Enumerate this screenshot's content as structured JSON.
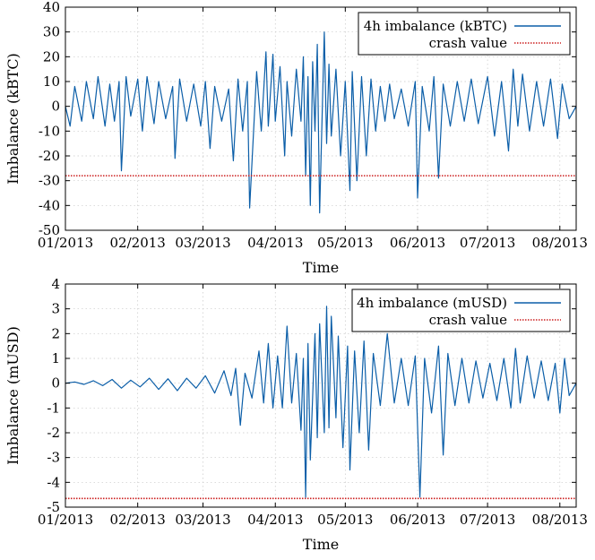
{
  "chart_data": [
    {
      "type": "line",
      "title": "",
      "xlabel": "Time",
      "ylabel": "Imbalance (kBTC)",
      "xlim": [
        "2013-01-01",
        "2013-08-08"
      ],
      "ylim": [
        -50,
        40
      ],
      "yticks": [
        -50,
        -40,
        -30,
        -20,
        -10,
        0,
        10,
        20,
        30,
        40
      ],
      "xticks": [
        {
          "date": "2013-01-01",
          "label": "01/2013"
        },
        {
          "date": "2013-02-01",
          "label": "02/2013"
        },
        {
          "date": "2013-03-01",
          "label": "03/2013"
        },
        {
          "date": "2013-04-01",
          "label": "04/2013"
        },
        {
          "date": "2013-05-01",
          "label": "05/2013"
        },
        {
          "date": "2013-06-01",
          "label": "06/2013"
        },
        {
          "date": "2013-07-01",
          "label": "07/2013"
        },
        {
          "date": "2013-08-01",
          "label": "08/2013"
        }
      ],
      "grid": true,
      "legend_position": "top-right",
      "series": [
        {
          "name": "4h imbalance (kBTC)",
          "color": "#0b5ea8",
          "style": "solid",
          "points": [
            [
              "2013-01-01",
              0
            ],
            [
              "2013-01-03",
              -8
            ],
            [
              "2013-01-05",
              8
            ],
            [
              "2013-01-08",
              -6
            ],
            [
              "2013-01-10",
              10
            ],
            [
              "2013-01-13",
              -5
            ],
            [
              "2013-01-15",
              12
            ],
            [
              "2013-01-18",
              -8
            ],
            [
              "2013-01-20",
              9
            ],
            [
              "2013-01-22",
              -6
            ],
            [
              "2013-01-24",
              10
            ],
            [
              "2013-01-25",
              -26
            ],
            [
              "2013-01-27",
              12
            ],
            [
              "2013-01-29",
              -4
            ],
            [
              "2013-02-01",
              11
            ],
            [
              "2013-02-03",
              -10
            ],
            [
              "2013-02-05",
              12
            ],
            [
              "2013-02-08",
              -7
            ],
            [
              "2013-02-10",
              10
            ],
            [
              "2013-02-13",
              -5
            ],
            [
              "2013-02-16",
              8
            ],
            [
              "2013-02-17",
              -21
            ],
            [
              "2013-02-19",
              11
            ],
            [
              "2013-02-22",
              -6
            ],
            [
              "2013-02-25",
              9
            ],
            [
              "2013-02-28",
              -8
            ],
            [
              "2013-03-02",
              10
            ],
            [
              "2013-03-04",
              -17
            ],
            [
              "2013-03-06",
              8
            ],
            [
              "2013-03-09",
              -6
            ],
            [
              "2013-03-12",
              7
            ],
            [
              "2013-03-14",
              -22
            ],
            [
              "2013-03-16",
              11
            ],
            [
              "2013-03-18",
              -10
            ],
            [
              "2013-03-20",
              10
            ],
            [
              "2013-03-21",
              -41
            ],
            [
              "2013-03-24",
              14
            ],
            [
              "2013-03-26",
              -10
            ],
            [
              "2013-03-28",
              22
            ],
            [
              "2013-03-29",
              -8
            ],
            [
              "2013-03-31",
              21
            ],
            [
              "2013-04-01",
              -6
            ],
            [
              "2013-04-03",
              16
            ],
            [
              "2013-04-05",
              -20
            ],
            [
              "2013-04-06",
              10
            ],
            [
              "2013-04-08",
              -12
            ],
            [
              "2013-04-10",
              15
            ],
            [
              "2013-04-12",
              -6
            ],
            [
              "2013-04-13",
              20
            ],
            [
              "2013-04-14",
              -28
            ],
            [
              "2013-04-15",
              12
            ],
            [
              "2013-04-16",
              -40
            ],
            [
              "2013-04-17",
              18
            ],
            [
              "2013-04-18",
              -10
            ],
            [
              "2013-04-19",
              25
            ],
            [
              "2013-04-20",
              -43
            ],
            [
              "2013-04-22",
              30
            ],
            [
              "2013-04-23",
              -15
            ],
            [
              "2013-04-24",
              17
            ],
            [
              "2013-04-25",
              -12
            ],
            [
              "2013-04-27",
              15
            ],
            [
              "2013-04-29",
              -20
            ],
            [
              "2013-05-01",
              10
            ],
            [
              "2013-05-03",
              -34
            ],
            [
              "2013-05-04",
              14
            ],
            [
              "2013-05-06",
              -30
            ],
            [
              "2013-05-08",
              12
            ],
            [
              "2013-05-10",
              -20
            ],
            [
              "2013-05-12",
              11
            ],
            [
              "2013-05-14",
              -10
            ],
            [
              "2013-05-16",
              8
            ],
            [
              "2013-05-18",
              -6
            ],
            [
              "2013-05-20",
              9
            ],
            [
              "2013-05-22",
              -5
            ],
            [
              "2013-05-25",
              7
            ],
            [
              "2013-05-28",
              -8
            ],
            [
              "2013-05-31",
              10
            ],
            [
              "2013-06-01",
              -37
            ],
            [
              "2013-06-03",
              8
            ],
            [
              "2013-06-06",
              -10
            ],
            [
              "2013-06-08",
              12
            ],
            [
              "2013-06-10",
              -29
            ],
            [
              "2013-06-12",
              9
            ],
            [
              "2013-06-15",
              -8
            ],
            [
              "2013-06-18",
              10
            ],
            [
              "2013-06-21",
              -6
            ],
            [
              "2013-06-24",
              11
            ],
            [
              "2013-06-27",
              -7
            ],
            [
              "2013-07-01",
              12
            ],
            [
              "2013-07-04",
              -12
            ],
            [
              "2013-07-07",
              10
            ],
            [
              "2013-07-10",
              -18
            ],
            [
              "2013-07-12",
              15
            ],
            [
              "2013-07-14",
              -8
            ],
            [
              "2013-07-16",
              13
            ],
            [
              "2013-07-19",
              -10
            ],
            [
              "2013-07-22",
              10
            ],
            [
              "2013-07-25",
              -8
            ],
            [
              "2013-07-28",
              11
            ],
            [
              "2013-07-31",
              -13
            ],
            [
              "2013-08-02",
              9
            ],
            [
              "2013-08-05",
              -5
            ],
            [
              "2013-08-08",
              0
            ]
          ]
        },
        {
          "name": "crash value",
          "color": "#cc1f1f",
          "style": "dotted",
          "y": -28
        }
      ]
    },
    {
      "type": "line",
      "title": "",
      "xlabel": "Time",
      "ylabel": "Imbalance (mUSD)",
      "xlim": [
        "2013-01-01",
        "2013-08-08"
      ],
      "ylim": [
        -5,
        4
      ],
      "yticks": [
        -5,
        -4,
        -3,
        -2,
        -1,
        0,
        1,
        2,
        3,
        4
      ],
      "xticks": [
        {
          "date": "2013-01-01",
          "label": "01/2013"
        },
        {
          "date": "2013-02-01",
          "label": "02/2013"
        },
        {
          "date": "2013-03-01",
          "label": "03/2013"
        },
        {
          "date": "2013-04-01",
          "label": "04/2013"
        },
        {
          "date": "2013-05-01",
          "label": "05/2013"
        },
        {
          "date": "2013-06-01",
          "label": "06/2013"
        },
        {
          "date": "2013-07-01",
          "label": "07/2013"
        },
        {
          "date": "2013-08-01",
          "label": "08/2013"
        }
      ],
      "grid": true,
      "legend_position": "top-right",
      "series": [
        {
          "name": "4h imbalance (mUSD)",
          "color": "#0b5ea8",
          "style": "solid",
          "points": [
            [
              "2013-01-01",
              0
            ],
            [
              "2013-01-05",
              0.05
            ],
            [
              "2013-01-09",
              -0.05
            ],
            [
              "2013-01-13",
              0.1
            ],
            [
              "2013-01-17",
              -0.1
            ],
            [
              "2013-01-21",
              0.15
            ],
            [
              "2013-01-25",
              -0.2
            ],
            [
              "2013-01-29",
              0.12
            ],
            [
              "2013-02-02",
              -0.15
            ],
            [
              "2013-02-06",
              0.2
            ],
            [
              "2013-02-10",
              -0.25
            ],
            [
              "2013-02-14",
              0.18
            ],
            [
              "2013-02-18",
              -0.3
            ],
            [
              "2013-02-22",
              0.2
            ],
            [
              "2013-02-26",
              -0.2
            ],
            [
              "2013-03-02",
              0.3
            ],
            [
              "2013-03-06",
              -0.4
            ],
            [
              "2013-03-10",
              0.5
            ],
            [
              "2013-03-13",
              -0.5
            ],
            [
              "2013-03-15",
              0.6
            ],
            [
              "2013-03-17",
              -1.7
            ],
            [
              "2013-03-19",
              0.4
            ],
            [
              "2013-03-22",
              -0.6
            ],
            [
              "2013-03-25",
              1.3
            ],
            [
              "2013-03-27",
              -0.8
            ],
            [
              "2013-03-29",
              1.6
            ],
            [
              "2013-03-31",
              -1.0
            ],
            [
              "2013-04-02",
              1.1
            ],
            [
              "2013-04-04",
              -1.0
            ],
            [
              "2013-04-06",
              2.3
            ],
            [
              "2013-04-08",
              -0.8
            ],
            [
              "2013-04-10",
              1.2
            ],
            [
              "2013-04-12",
              -1.9
            ],
            [
              "2013-04-13",
              1.0
            ],
            [
              "2013-04-14",
              -4.6
            ],
            [
              "2013-04-15",
              1.6
            ],
            [
              "2013-04-16",
              -3.1
            ],
            [
              "2013-04-18",
              2.0
            ],
            [
              "2013-04-19",
              -2.2
            ],
            [
              "2013-04-20",
              2.4
            ],
            [
              "2013-04-22",
              -2.0
            ],
            [
              "2013-04-23",
              3.1
            ],
            [
              "2013-04-24",
              -1.8
            ],
            [
              "2013-04-25",
              2.7
            ],
            [
              "2013-04-27",
              -1.4
            ],
            [
              "2013-04-28",
              1.9
            ],
            [
              "2013-04-30",
              -2.6
            ],
            [
              "2013-05-02",
              1.5
            ],
            [
              "2013-05-03",
              -3.5
            ],
            [
              "2013-05-05",
              1.3
            ],
            [
              "2013-05-07",
              -2.0
            ],
            [
              "2013-05-09",
              1.7
            ],
            [
              "2013-05-11",
              -2.7
            ],
            [
              "2013-05-13",
              1.2
            ],
            [
              "2013-05-16",
              -0.9
            ],
            [
              "2013-05-19",
              2.0
            ],
            [
              "2013-05-22",
              -0.8
            ],
            [
              "2013-05-25",
              1.0
            ],
            [
              "2013-05-28",
              -0.9
            ],
            [
              "2013-05-31",
              1.1
            ],
            [
              "2013-06-02",
              -4.6
            ],
            [
              "2013-06-04",
              1.0
            ],
            [
              "2013-06-07",
              -1.2
            ],
            [
              "2013-06-10",
              1.5
            ],
            [
              "2013-06-12",
              -2.9
            ],
            [
              "2013-06-14",
              1.2
            ],
            [
              "2013-06-17",
              -0.9
            ],
            [
              "2013-06-20",
              1.0
            ],
            [
              "2013-06-23",
              -0.8
            ],
            [
              "2013-06-26",
              0.9
            ],
            [
              "2013-06-29",
              -0.6
            ],
            [
              "2013-07-02",
              0.8
            ],
            [
              "2013-07-05",
              -0.7
            ],
            [
              "2013-07-08",
              1.0
            ],
            [
              "2013-07-11",
              -1.0
            ],
            [
              "2013-07-13",
              1.4
            ],
            [
              "2013-07-15",
              -0.8
            ],
            [
              "2013-07-18",
              1.1
            ],
            [
              "2013-07-21",
              -0.6
            ],
            [
              "2013-07-24",
              0.9
            ],
            [
              "2013-07-27",
              -0.7
            ],
            [
              "2013-07-30",
              0.8
            ],
            [
              "2013-08-01",
              -1.2
            ],
            [
              "2013-08-03",
              1.0
            ],
            [
              "2013-08-05",
              -0.5
            ],
            [
              "2013-08-08",
              0
            ]
          ]
        },
        {
          "name": "crash value",
          "color": "#cc1f1f",
          "style": "dotted",
          "y": -4.65
        }
      ]
    }
  ]
}
